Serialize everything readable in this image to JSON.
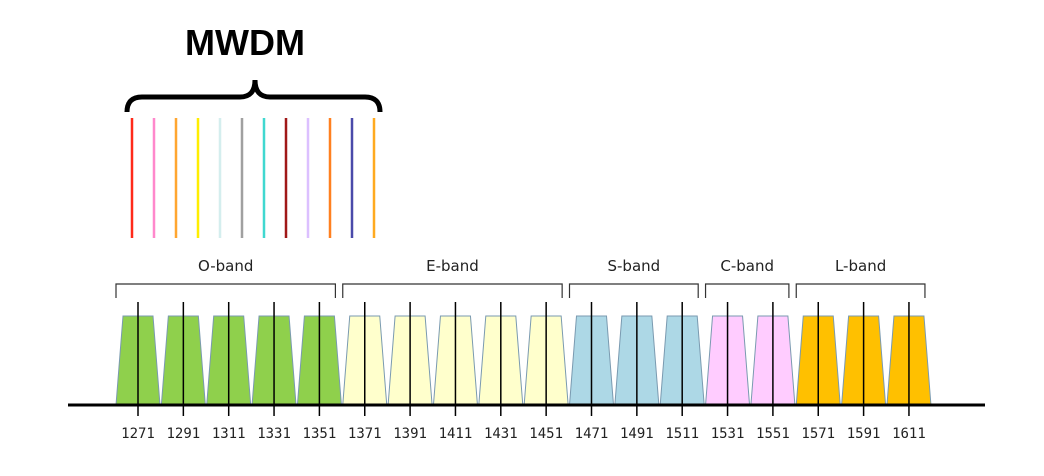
{
  "title": "MWDM",
  "mwdm_line_colors": [
    "#ff2a1a",
    "#ff88cc",
    "#ffa630",
    "#ffee00",
    "#d4eeee",
    "#a0a0a0",
    "#40d8d0",
    "#a01818",
    "#dcc0ff",
    "#ff8020",
    "#4a4aaa",
    "#ffaa20"
  ],
  "bands": [
    {
      "label": "O-band",
      "color": "#8fd04c",
      "channels": [
        "1271",
        "1291",
        "1311",
        "1331",
        "1351"
      ]
    },
    {
      "label": "E-band",
      "color": "#ffffcc",
      "channels": [
        "1371",
        "1391",
        "1411",
        "1431",
        "1451"
      ]
    },
    {
      "label": "S-band",
      "color": "#add8e6",
      "channels": [
        "1471",
        "1491",
        "1511"
      ]
    },
    {
      "label": "C-band",
      "color": "#ffccff",
      "channels": [
        "1531",
        "1551"
      ]
    },
    {
      "label": "L-band",
      "color": "#ffc000",
      "channels": [
        "1571",
        "1591",
        "1611"
      ]
    }
  ]
}
